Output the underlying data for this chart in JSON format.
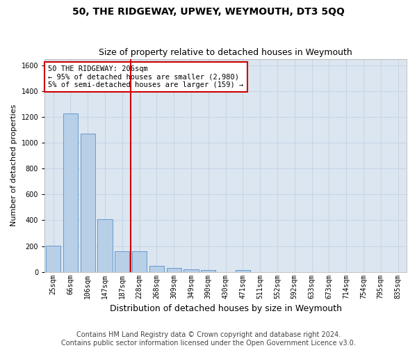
{
  "title": "50, THE RIDGEWAY, UPWEY, WEYMOUTH, DT3 5QQ",
  "subtitle": "Size of property relative to detached houses in Weymouth",
  "xlabel": "Distribution of detached houses by size in Weymouth",
  "ylabel": "Number of detached properties",
  "categories": [
    "25sqm",
    "66sqm",
    "106sqm",
    "147sqm",
    "187sqm",
    "228sqm",
    "268sqm",
    "309sqm",
    "349sqm",
    "390sqm",
    "430sqm",
    "471sqm",
    "511sqm",
    "552sqm",
    "592sqm",
    "633sqm",
    "673sqm",
    "714sqm",
    "754sqm",
    "795sqm",
    "835sqm"
  ],
  "values": [
    205,
    1225,
    1070,
    410,
    160,
    160,
    45,
    28,
    18,
    12,
    0,
    12,
    0,
    0,
    0,
    0,
    0,
    0,
    0,
    0,
    0
  ],
  "bar_color": "#b8cfe8",
  "bar_edge_color": "#6699cc",
  "vline_color": "#cc0000",
  "vline_xindex": 5,
  "annotation_text": "50 THE RIDGEWAY: 206sqm\n← 95% of detached houses are smaller (2,980)\n5% of semi-detached houses are larger (159) →",
  "annotation_box_facecolor": "#ffffff",
  "annotation_box_edgecolor": "#cc0000",
  "ylim": [
    0,
    1650
  ],
  "yticks": [
    0,
    200,
    400,
    600,
    800,
    1000,
    1200,
    1400,
    1600
  ],
  "grid_color": "#c8d4e8",
  "background_color": "#dce6f0",
  "footer_line1": "Contains HM Land Registry data © Crown copyright and database right 2024.",
  "footer_line2": "Contains public sector information licensed under the Open Government Licence v3.0.",
  "title_fontsize": 10,
  "subtitle_fontsize": 9,
  "ylabel_fontsize": 8,
  "xlabel_fontsize": 9,
  "tick_fontsize": 7,
  "footer_fontsize": 7,
  "annot_fontsize": 7.5
}
